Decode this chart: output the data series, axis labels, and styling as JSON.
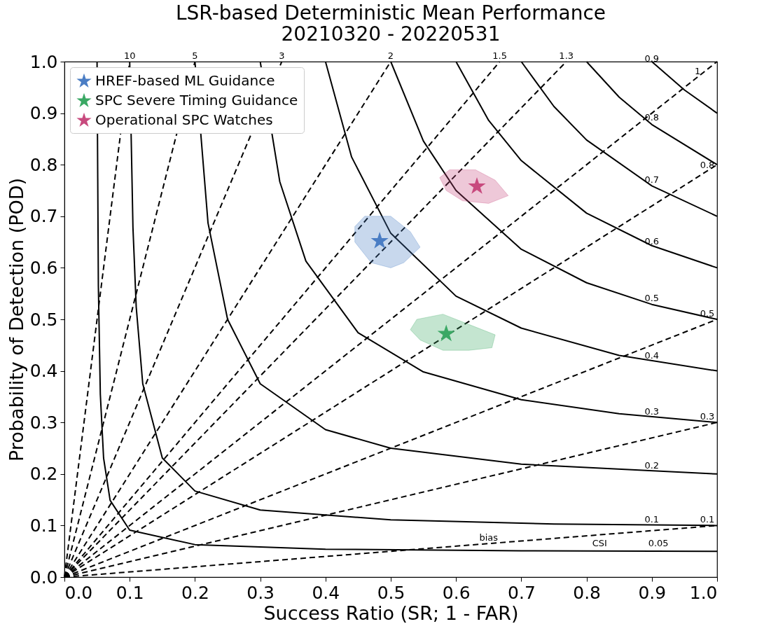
{
  "chart_data": {
    "type": "scatter",
    "title": "LSR-based Deterministic Mean Performance",
    "subtitle": "20210320 - 20220531",
    "xlabel": "Success Ratio (SR; 1 - FAR)",
    "ylabel": "Probability of Detection (POD)",
    "xlim": [
      0,
      1
    ],
    "ylim": [
      0,
      1
    ],
    "xticks": [
      {
        "value": 0,
        "label": "0.0"
      },
      0.1,
      0.2,
      0.3,
      0.4,
      0.5,
      0.6,
      0.7,
      0.8,
      0.9,
      {
        "value": 1,
        "label": "1.0"
      }
    ],
    "yticks": [
      {
        "value": 0,
        "label": "0.0"
      },
      0.1,
      0.2,
      0.3,
      0.4,
      0.5,
      0.6,
      0.7,
      0.8,
      0.9,
      {
        "value": 1,
        "label": "1.0"
      }
    ],
    "grid": false,
    "legend": "top left",
    "series": [
      {
        "type": "line",
        "color": "#000000",
        "line_style": "solid",
        "x": [
          0.05,
          0.052,
          0.055,
          0.06,
          0.07,
          0.1,
          0.2,
          0.4,
          0.7,
          1
        ],
        "values": [
          1,
          0.565,
          0.355,
          0.231,
          0.149,
          0.091,
          0.063,
          0.054,
          0.051,
          0.05
        ]
      },
      {
        "type": "line",
        "color": "#000000",
        "line_style": "solid",
        "x": [
          0.1,
          0.105,
          0.11,
          0.12,
          0.15,
          0.2,
          0.3,
          0.5,
          0.75,
          1
        ],
        "values": [
          1,
          0.678,
          0.524,
          0.375,
          0.231,
          0.167,
          0.13,
          0.111,
          0.103,
          0.1
        ]
      },
      {
        "type": "line",
        "color": "#000000",
        "line_style": "solid",
        "x": [
          0.2,
          0.22,
          0.25,
          0.3,
          0.4,
          0.5,
          0.7,
          1
        ],
        "values": [
          1,
          0.687,
          0.5,
          0.375,
          0.286,
          0.25,
          0.219,
          0.2
        ]
      },
      {
        "type": "line",
        "color": "#000000",
        "line_style": "solid",
        "x": [
          0.3,
          0.33,
          0.37,
          0.45,
          0.55,
          0.7,
          0.85,
          1
        ],
        "values": [
          1,
          0.767,
          0.613,
          0.474,
          0.398,
          0.344,
          0.317,
          0.3
        ]
      },
      {
        "type": "line",
        "color": "#000000",
        "line_style": "solid",
        "x": [
          0.4,
          0.44,
          0.5,
          0.6,
          0.7,
          0.85,
          1
        ],
        "values": [
          1,
          0.815,
          0.667,
          0.545,
          0.483,
          0.43,
          0.4
        ]
      },
      {
        "type": "line",
        "color": "#000000",
        "line_style": "solid",
        "x": [
          0.5,
          0.55,
          0.6,
          0.7,
          0.8,
          0.9,
          1
        ],
        "values": [
          1,
          0.846,
          0.75,
          0.636,
          0.571,
          0.529,
          0.5
        ]
      },
      {
        "type": "line",
        "color": "#000000",
        "line_style": "solid",
        "x": [
          0.6,
          0.65,
          0.7,
          0.8,
          0.9,
          1
        ],
        "values": [
          1,
          0.886,
          0.808,
          0.706,
          0.643,
          0.6
        ]
      },
      {
        "type": "line",
        "color": "#000000",
        "line_style": "solid",
        "x": [
          0.7,
          0.75,
          0.8,
          0.9,
          1
        ],
        "values": [
          1,
          0.913,
          0.848,
          0.759,
          0.7
        ]
      },
      {
        "type": "line",
        "color": "#000000",
        "line_style": "solid",
        "x": [
          0.8,
          0.85,
          0.9,
          1
        ],
        "values": [
          1,
          0.931,
          0.878,
          0.8
        ]
      },
      {
        "type": "line",
        "color": "#000000",
        "line_style": "solid",
        "x": [
          0.9,
          0.95,
          1
        ],
        "values": [
          1,
          0.945,
          0.9
        ]
      },
      {
        "type": "line",
        "color": "#000000",
        "line_style": "dashed",
        "x": [
          0,
          0.1
        ],
        "values": [
          0,
          1
        ]
      },
      {
        "type": "line",
        "color": "#000000",
        "line_style": "dashed",
        "x": [
          0,
          0.2
        ],
        "values": [
          0,
          1
        ]
      },
      {
        "type": "line",
        "color": "#000000",
        "line_style": "dashed",
        "x": [
          0,
          0.333
        ],
        "values": [
          0,
          1
        ]
      },
      {
        "type": "line",
        "color": "#000000",
        "line_style": "dashed",
        "x": [
          0,
          0.5
        ],
        "values": [
          0,
          1
        ]
      },
      {
        "type": "line",
        "color": "#000000",
        "line_style": "dashed",
        "x": [
          0,
          0.667
        ],
        "values": [
          0,
          1
        ]
      },
      {
        "type": "line",
        "color": "#000000",
        "line_style": "dashed",
        "x": [
          0,
          0.769
        ],
        "values": [
          0,
          1
        ]
      },
      {
        "type": "line",
        "color": "#000000",
        "line_style": "dashed",
        "x": [
          0,
          1
        ],
        "values": [
          0,
          1
        ]
      },
      {
        "type": "line",
        "color": "#000000",
        "line_style": "dashed",
        "x": [
          0,
          1
        ],
        "values": [
          0,
          0.8
        ]
      },
      {
        "type": "line",
        "color": "#000000",
        "line_style": "dashed",
        "x": [
          0,
          1
        ],
        "values": [
          0,
          0.5
        ]
      },
      {
        "type": "line",
        "color": "#000000",
        "line_style": "dashed",
        "x": [
          0,
          1
        ],
        "values": [
          0,
          0.3
        ]
      },
      {
        "type": "line",
        "color": "#000000",
        "line_style": "dashed",
        "x": [
          0,
          1
        ],
        "values": [
          0,
          0.1
        ]
      },
      {
        "type": "area",
        "color": "#4a7dc4",
        "x": [
          0.46,
          0.5,
          0.53,
          0.545,
          0.52,
          0.5,
          0.47,
          0.445,
          0.445,
          0.46
        ],
        "values": [
          0.7,
          0.7,
          0.67,
          0.64,
          0.61,
          0.6,
          0.61,
          0.65,
          0.68,
          0.7
        ]
      },
      {
        "type": "area",
        "color": "#3aa864",
        "x": [
          0.54,
          0.58,
          0.62,
          0.66,
          0.655,
          0.62,
          0.58,
          0.545,
          0.53,
          0.54
        ],
        "values": [
          0.5,
          0.51,
          0.49,
          0.47,
          0.445,
          0.44,
          0.44,
          0.46,
          0.48,
          0.5
        ]
      },
      {
        "type": "area",
        "color": "#c84a7e",
        "x": [
          0.59,
          0.63,
          0.66,
          0.68,
          0.65,
          0.61,
          0.585,
          0.575,
          0.59
        ],
        "values": [
          0.79,
          0.79,
          0.77,
          0.74,
          0.725,
          0.73,
          0.75,
          0.775,
          0.79
        ]
      },
      {
        "name": "HREF-based ML Guidance",
        "marker": "star",
        "color": "#4a7dc4",
        "x": [
          0.483
        ],
        "values": [
          0.652
        ]
      },
      {
        "name": "SPC Severe Timing Guidance",
        "marker": "star",
        "color": "#3aa864",
        "x": [
          0.585
        ],
        "values": [
          0.472
        ]
      },
      {
        "name": "Operational SPC Watches",
        "marker": "star",
        "color": "#c84a7e",
        "x": [
          0.632
        ],
        "values": [
          0.758
        ]
      }
    ],
    "annotations": [
      {
        "text": "0.9",
        "x": 0.9,
        "y": 0.995
      },
      {
        "text": "0.8",
        "x": 0.9,
        "y": 0.88
      },
      {
        "text": "0.7",
        "x": 0.9,
        "y": 0.76
      },
      {
        "text": "0.6",
        "x": 0.9,
        "y": 0.64
      },
      {
        "text": "0.5",
        "x": 0.9,
        "y": 0.53
      },
      {
        "text": "0.4",
        "x": 0.9,
        "y": 0.419
      },
      {
        "text": "0.3",
        "x": 0.9,
        "y": 0.31
      },
      {
        "text": "0.2",
        "x": 0.9,
        "y": 0.205
      },
      {
        "text": "0.1",
        "x": 0.9,
        "y": 0.101
      },
      {
        "text": "0.05",
        "x": 0.91,
        "y": 0.055
      },
      {
        "text": "10",
        "x": 0.1,
        "y": 1
      },
      {
        "text": "5",
        "x": 0.2,
        "y": 1
      },
      {
        "text": "3",
        "x": 0.333,
        "y": 1
      },
      {
        "text": "2",
        "x": 0.5,
        "y": 1
      },
      {
        "text": "1.5",
        "x": 0.667,
        "y": 1
      },
      {
        "text": "1.3",
        "x": 0.769,
        "y": 1
      },
      {
        "text": "1",
        "x": 0.97,
        "y": 0.97
      },
      {
        "text": "0.8",
        "x": 0.985,
        "y": 0.788
      },
      {
        "text": "0.5",
        "x": 0.985,
        "y": 0.5
      },
      {
        "text": "0.3",
        "x": 0.985,
        "y": 0.3
      },
      {
        "text": "0.1",
        "x": 0.985,
        "y": 0.1
      },
      {
        "text": "bias",
        "x": 0.65,
        "y": 0.065
      },
      {
        "text": "CSI",
        "x": 0.82,
        "y": 0.055
      }
    ]
  }
}
